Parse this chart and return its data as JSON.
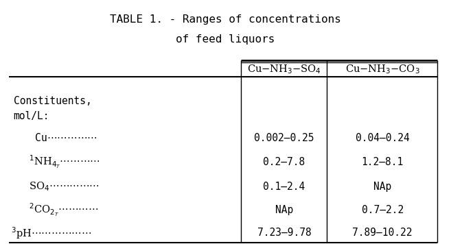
{
  "title_line1": "TABLE 1. - Ranges of concentrations",
  "title_line2": "of feed liquors",
  "col_headers": [
    "Cu–NH₃–SO₄",
    "Cu–NH₃–CO₃"
  ],
  "row_labels": [
    "Constituents,\nmol/L:",
    "  Cu………………",
    "  ¹NH₄ₜ……………",
    "  SO₄……………",
    "  ²CO₂ₜ…………",
    "³pH…………………"
  ],
  "col1_values": [
    "",
    "0.002–0.25",
    "0.2–7.8",
    "0.1–2.4",
    "NAp",
    "7.23–9.78"
  ],
  "col2_values": [
    "",
    "0.04–0.24",
    "1.2–8.1",
    "NAp",
    "0.7–2.2",
    "7.89–10.22"
  ],
  "bg_color": "#ffffff",
  "text_color": "#000000",
  "font_family": "monospace",
  "font_size": 10.5,
  "title_font_size": 11.5
}
